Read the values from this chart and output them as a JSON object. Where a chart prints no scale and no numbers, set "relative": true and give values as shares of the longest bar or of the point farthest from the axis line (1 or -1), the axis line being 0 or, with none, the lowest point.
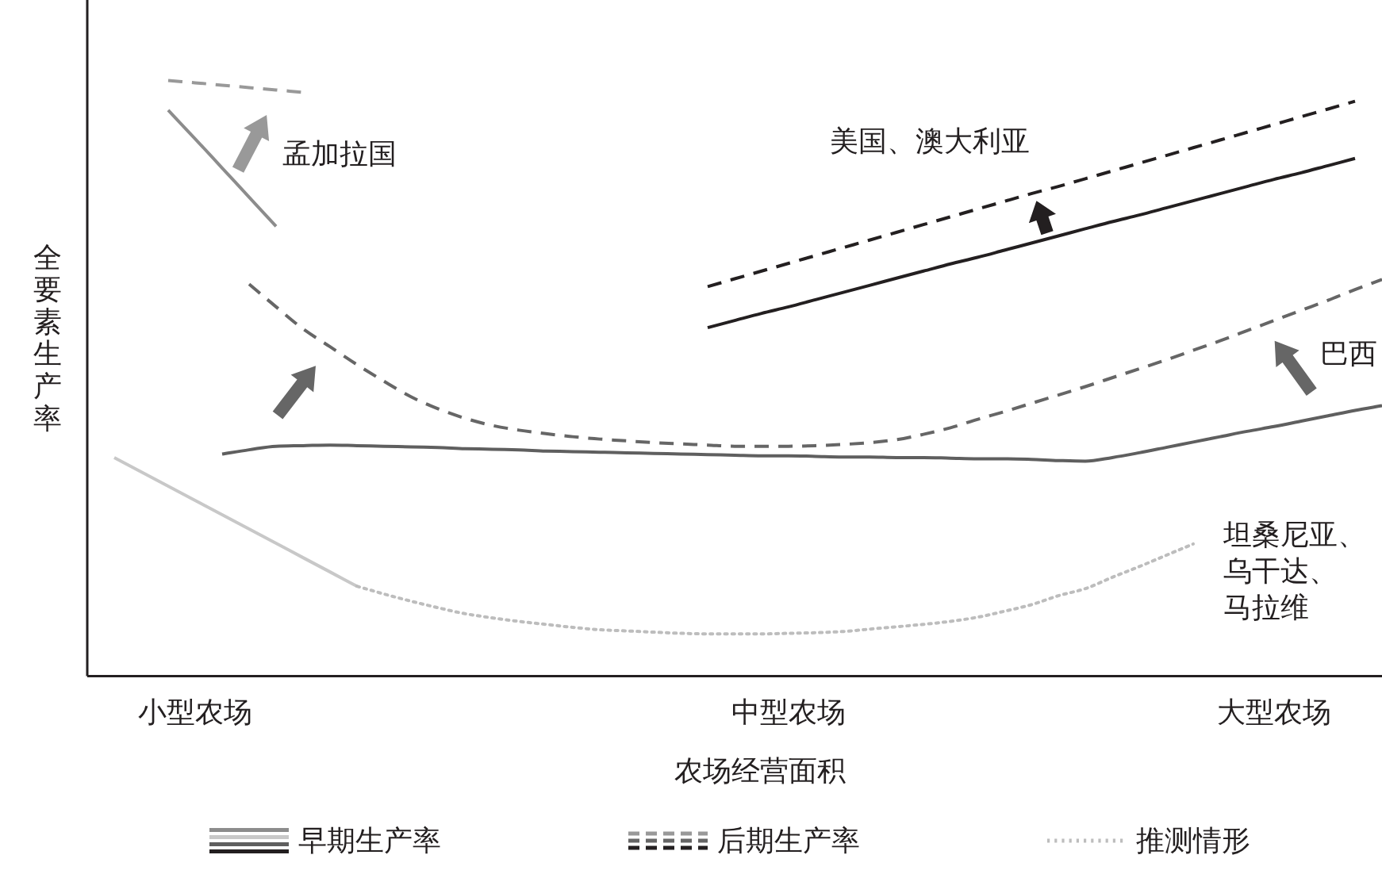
{
  "chart_data": {
    "type": "line",
    "relative": true,
    "xlabel": "农场经营面积",
    "ylabel": "全要素生产率",
    "legend": "bottom",
    "categories": [
      null,
      null,
      null,
      null,
      "小型农场",
      null,
      null,
      null,
      null,
      null,
      null,
      null,
      null,
      null,
      null,
      null,
      null,
      null,
      null,
      null,
      null,
      null,
      null,
      null,
      null,
      null,
      "中型农场",
      null,
      null,
      null,
      null,
      null,
      null,
      null,
      null,
      null,
      null,
      null,
      null,
      null,
      null,
      null,
      null,
      null,
      "大型农场",
      null,
      null,
      null,
      null
    ],
    "series": [
      {
        "name": "早期生产率",
        "color": "#8c8c8c",
        "line_style": "solid",
        "values": [
          null,
          null,
          null,
          0.95,
          0.902,
          0.853,
          0.804,
          0.755,
          null,
          null,
          null,
          null,
          null,
          null,
          null,
          null,
          null,
          null,
          null,
          null,
          null,
          null,
          null,
          null,
          null,
          null,
          null,
          null,
          null,
          null,
          null,
          null,
          null,
          null,
          null,
          null,
          null,
          null,
          null,
          null,
          null,
          null,
          null,
          null,
          null,
          null,
          null,
          null,
          null
        ]
      },
      {
        "name": "后期生产率",
        "color": "#999999",
        "line_style": "dashed",
        "values": [
          null,
          null,
          null,
          1.0,
          0.996,
          0.992,
          0.988,
          0.984,
          0.98,
          null,
          null,
          null,
          null,
          null,
          null,
          null,
          null,
          null,
          null,
          null,
          null,
          null,
          null,
          null,
          null,
          null,
          null,
          null,
          null,
          null,
          null,
          null,
          null,
          null,
          null,
          null,
          null,
          null,
          null,
          null,
          null,
          null,
          null,
          null,
          null,
          null,
          null,
          null,
          null
        ]
      },
      {
        "color": "#5f5f5f",
        "line_style": "solid",
        "values": [
          null,
          null,
          null,
          null,
          null,
          0.373,
          0.38,
          0.386,
          0.387,
          0.388,
          0.387,
          0.386,
          0.385,
          0.384,
          0.382,
          0.381,
          0.38,
          0.378,
          0.377,
          0.376,
          0.375,
          0.374,
          0.373,
          0.372,
          0.371,
          0.37,
          0.37,
          0.369,
          0.368,
          0.368,
          0.367,
          0.367,
          0.366,
          0.365,
          0.365,
          0.364,
          0.362,
          0.361,
          0.367,
          0.375,
          0.384,
          0.393,
          0.402,
          0.411,
          0.419,
          0.428,
          0.437,
          0.446,
          0.454
        ]
      },
      {
        "color": "#666666",
        "line_style": "dashed",
        "values": [
          null,
          null,
          null,
          null,
          null,
          null,
          0.658,
          0.62,
          0.583,
          0.553,
          0.523,
          0.495,
          0.469,
          0.449,
          0.433,
          0.421,
          0.413,
          0.407,
          0.402,
          0.398,
          0.395,
          0.392,
          0.39,
          0.388,
          0.386,
          0.386,
          0.386,
          0.387,
          0.389,
          0.392,
          0.397,
          0.406,
          0.417,
          0.431,
          0.444,
          0.458,
          0.472,
          0.486,
          0.501,
          0.516,
          0.531,
          0.547,
          0.563,
          0.58,
          0.597,
          0.614,
          0.631,
          0.649,
          0.666
        ]
      },
      {
        "color": "#231f20",
        "line_style": "solid",
        "values": [
          null,
          null,
          null,
          null,
          null,
          null,
          null,
          null,
          null,
          null,
          null,
          null,
          null,
          null,
          null,
          null,
          null,
          null,
          null,
          null,
          null,
          null,
          null,
          0.585,
          0.597,
          0.609,
          0.62,
          0.632,
          0.644,
          0.656,
          0.668,
          0.68,
          0.692,
          0.703,
          0.715,
          0.727,
          0.739,
          0.751,
          0.763,
          0.774,
          0.786,
          0.798,
          0.81,
          0.822,
          0.834,
          0.845,
          0.857,
          0.869,
          null
        ]
      },
      {
        "color": "#231f20",
        "line_style": "dashed",
        "values": [
          null,
          null,
          null,
          null,
          null,
          null,
          null,
          null,
          null,
          null,
          null,
          null,
          null,
          null,
          null,
          null,
          null,
          null,
          null,
          null,
          null,
          null,
          null,
          0.654,
          0.667,
          0.68,
          0.693,
          0.706,
          0.719,
          0.732,
          0.745,
          0.758,
          0.771,
          0.784,
          0.797,
          0.81,
          0.822,
          0.835,
          0.848,
          0.861,
          0.874,
          0.887,
          0.9,
          0.913,
          0.926,
          0.939,
          0.952,
          0.965,
          null
        ]
      },
      {
        "color": "#c8c8c8",
        "line_style": "solid",
        "values": [
          null,
          0.367,
          0.343,
          0.319,
          0.295,
          0.271,
          0.247,
          0.223,
          0.199,
          0.175,
          0.151,
          null,
          null,
          null,
          null,
          null,
          null,
          null,
          null,
          null,
          null,
          null,
          null,
          null,
          null,
          null,
          null,
          null,
          null,
          null,
          null,
          null,
          null,
          null,
          null,
          null,
          null,
          null,
          null,
          null,
          null,
          null,
          null,
          null,
          null,
          null,
          null,
          null,
          null
        ]
      },
      {
        "name": "推测情形",
        "color": "#bdbdbd",
        "line_style": "dotted",
        "values": [
          null,
          null,
          null,
          null,
          null,
          null,
          null,
          null,
          null,
          null,
          0.151,
          0.138,
          0.126,
          0.115,
          0.105,
          0.098,
          0.092,
          0.087,
          0.082,
          0.078,
          0.076,
          0.074,
          0.072,
          0.071,
          0.071,
          0.071,
          0.072,
          0.073,
          0.075,
          0.079,
          0.083,
          0.087,
          0.092,
          0.099,
          0.109,
          0.12,
          0.135,
          0.147,
          0.166,
          0.184,
          0.203,
          0.222,
          null,
          null,
          null,
          null,
          null,
          null,
          null
        ]
      }
    ],
    "annotations": [
      "孟加拉国",
      "美国、澳大利亚",
      "巴西",
      "坦桑尼亚、乌干达、马拉维"
    ]
  }
}
